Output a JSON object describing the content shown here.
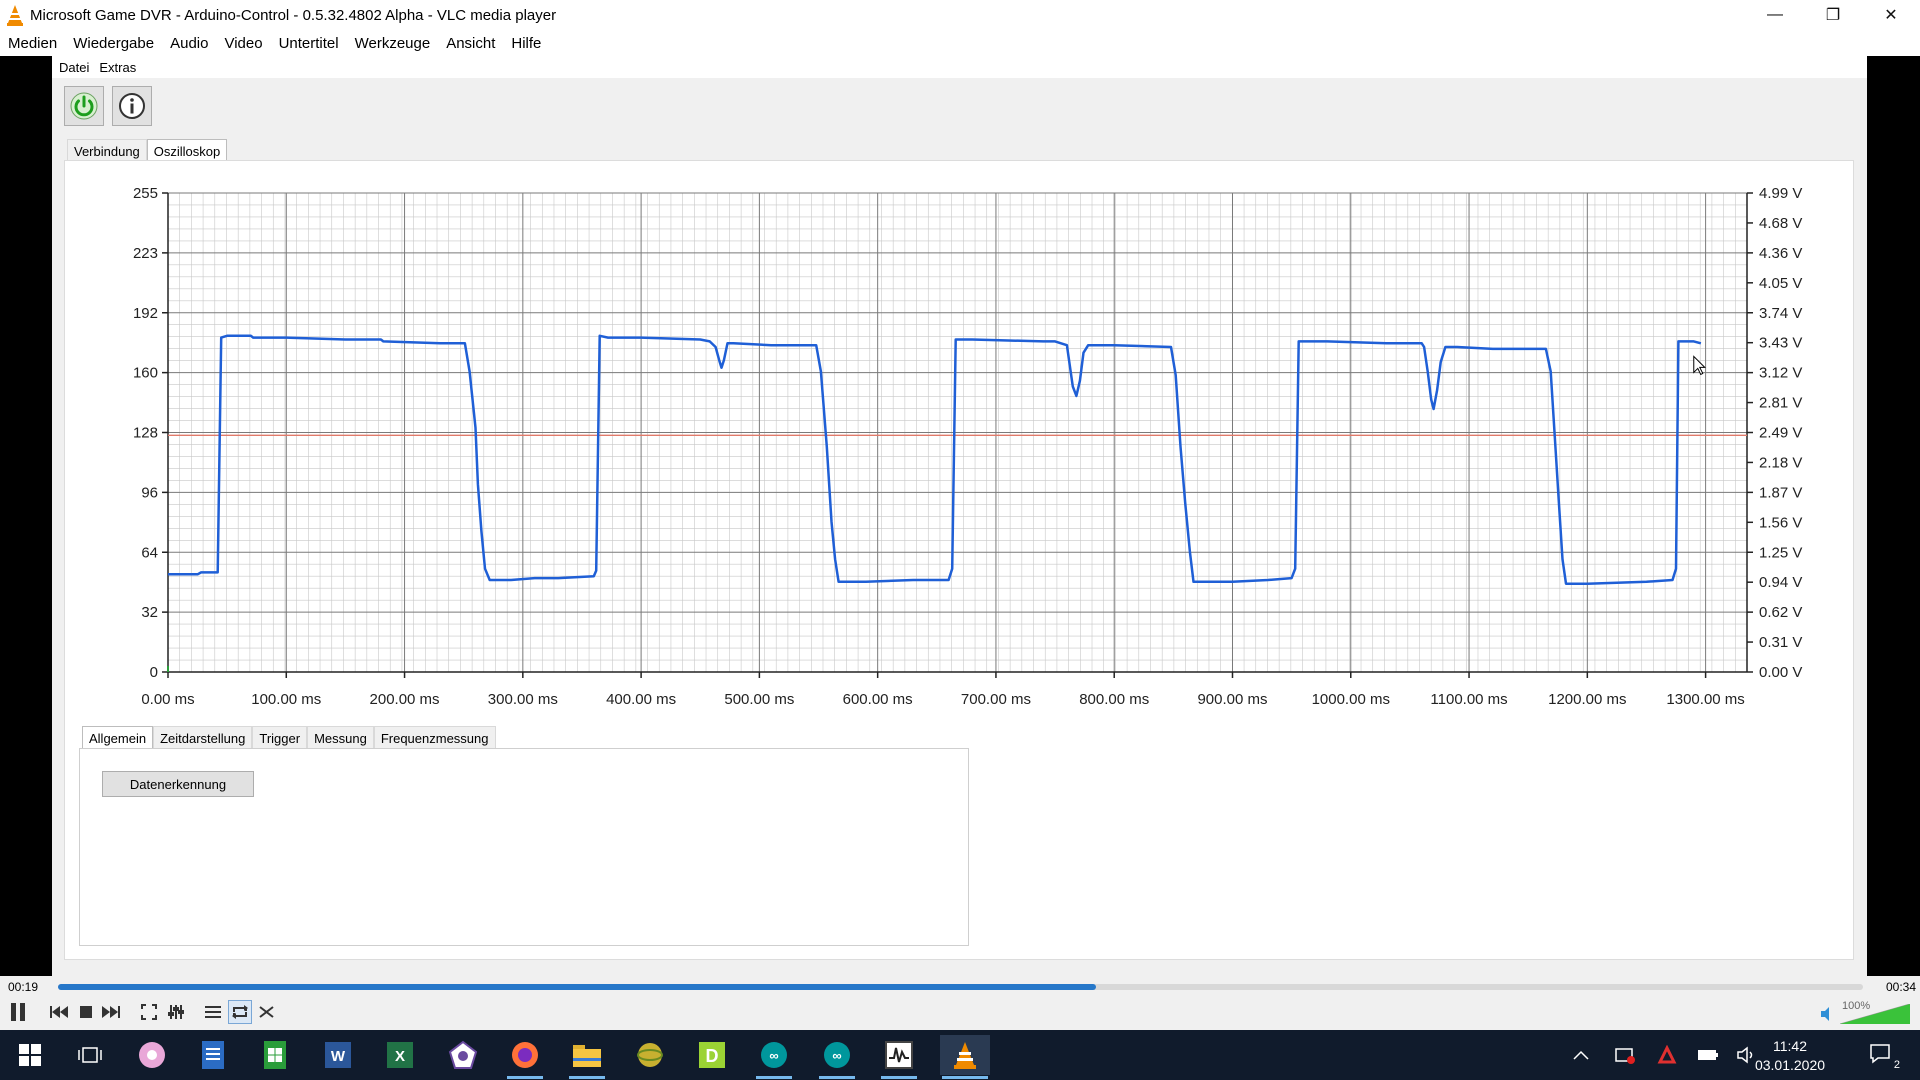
{
  "window": {
    "title": "Microsoft Game DVR - Arduino-Control - 0.5.32.4802  Alpha - VLC media player",
    "minimize": "—",
    "restore": "❐",
    "close": "✕"
  },
  "vlc_menu": [
    "Medien",
    "Wiedergabe",
    "Audio",
    "Video",
    "Untertitel",
    "Werkzeuge",
    "Ansicht",
    "Hilfe"
  ],
  "app": {
    "menu": [
      "Datei",
      "Extras"
    ],
    "tabs_top": [
      {
        "label": "Verbindung",
        "active": false
      },
      {
        "label": "Oszilloskop",
        "active": true
      }
    ],
    "tabs_bottom": [
      {
        "label": "Allgemein",
        "active": true
      },
      {
        "label": "Zeitdarstellung",
        "active": false
      },
      {
        "label": "Trigger",
        "active": false
      },
      {
        "label": "Messung",
        "active": false
      },
      {
        "label": "Frequenzmessung",
        "active": false
      }
    ],
    "datenerkennung_button": "Datenerkennung",
    "power_icon": "power-icon",
    "info_icon": "info-icon"
  },
  "chart_data": {
    "type": "line",
    "x_unit": "ms",
    "xlim": [
      0,
      1335
    ],
    "ylim_left": [
      0,
      255
    ],
    "ylim_right": [
      0,
      4.99
    ],
    "left_ticks": [
      "255",
      "223",
      "192",
      "160",
      "128",
      "96",
      "64",
      "32",
      "0"
    ],
    "right_ticks": [
      "4.99 V",
      "4.68 V",
      "4.36 V",
      "4.05 V",
      "3.74 V",
      "3.43 V",
      "3.12 V",
      "2.81 V",
      "2.49 V",
      "2.18 V",
      "1.87 V",
      "1.56 V",
      "1.25 V",
      "0.94 V",
      "0.62 V",
      "0.31 V",
      "0.00 V"
    ],
    "x_ticks": [
      "0.00 ms",
      "100.00 ms",
      "200.00 ms",
      "300.00 ms",
      "400.00 ms",
      "500.00 ms",
      "600.00 ms",
      "700.00 ms",
      "800.00 ms",
      "900.00 ms",
      "1000.00 ms",
      "1100.00 ms",
      "1200.00 ms",
      "1300.00 ms"
    ],
    "trigger_level": 126,
    "series": [
      {
        "color": "#1f5fd6",
        "points": [
          [
            0,
            52
          ],
          [
            25,
            52
          ],
          [
            28,
            53
          ],
          [
            42,
            53
          ],
          [
            45,
            178
          ],
          [
            50,
            179
          ],
          [
            70,
            179
          ],
          [
            72,
            178
          ],
          [
            100,
            178
          ],
          [
            150,
            177
          ],
          [
            180,
            177
          ],
          [
            182,
            176
          ],
          [
            230,
            175
          ],
          [
            251,
            175
          ],
          [
            255,
            160
          ],
          [
            260,
            130
          ],
          [
            262,
            100
          ],
          [
            265,
            75
          ],
          [
            268,
            55
          ],
          [
            272,
            49
          ],
          [
            290,
            49
          ],
          [
            310,
            50
          ],
          [
            330,
            50
          ],
          [
            360,
            51
          ],
          [
            362,
            54
          ],
          [
            365,
            179
          ],
          [
            372,
            178
          ],
          [
            400,
            178
          ],
          [
            450,
            177
          ],
          [
            458,
            176
          ],
          [
            463,
            173
          ],
          [
            466,
            166
          ],
          [
            468,
            162
          ],
          [
            470,
            166
          ],
          [
            473,
            175
          ],
          [
            478,
            175
          ],
          [
            510,
            174
          ],
          [
            548,
            174
          ],
          [
            552,
            160
          ],
          [
            557,
            120
          ],
          [
            561,
            80
          ],
          [
            564,
            60
          ],
          [
            567,
            48
          ],
          [
            590,
            48
          ],
          [
            630,
            49
          ],
          [
            660,
            49
          ],
          [
            663,
            55
          ],
          [
            666,
            177
          ],
          [
            680,
            177
          ],
          [
            740,
            176
          ],
          [
            750,
            176
          ],
          [
            760,
            174
          ],
          [
            762,
            165
          ],
          [
            765,
            152
          ],
          [
            768,
            147
          ],
          [
            771,
            155
          ],
          [
            774,
            170
          ],
          [
            778,
            174
          ],
          [
            800,
            174
          ],
          [
            848,
            173
          ],
          [
            852,
            158
          ],
          [
            856,
            120
          ],
          [
            860,
            90
          ],
          [
            864,
            64
          ],
          [
            867,
            48
          ],
          [
            900,
            48
          ],
          [
            930,
            49
          ],
          [
            950,
            50
          ],
          [
            953,
            55
          ],
          [
            956,
            176
          ],
          [
            980,
            176
          ],
          [
            1030,
            175
          ],
          [
            1060,
            175
          ],
          [
            1062,
            173
          ],
          [
            1065,
            160
          ],
          [
            1068,
            145
          ],
          [
            1070,
            140
          ],
          [
            1073,
            150
          ],
          [
            1076,
            165
          ],
          [
            1080,
            173
          ],
          [
            1090,
            173
          ],
          [
            1120,
            172
          ],
          [
            1165,
            172
          ],
          [
            1169,
            160
          ],
          [
            1173,
            120
          ],
          [
            1176,
            90
          ],
          [
            1179,
            60
          ],
          [
            1182,
            47
          ],
          [
            1200,
            47
          ],
          [
            1250,
            48
          ],
          [
            1272,
            49
          ],
          [
            1275,
            55
          ],
          [
            1277,
            176
          ],
          [
            1290,
            176
          ],
          [
            1296,
            175
          ]
        ]
      }
    ]
  },
  "player": {
    "time_elapsed": "00:19",
    "time_total": "00:34",
    "progress": 0.575,
    "volume": "100%",
    "volume_level": 1.0
  },
  "taskbar": {
    "clock_time": "11:42",
    "clock_date": "03.01.2020",
    "notification_count": "2"
  }
}
